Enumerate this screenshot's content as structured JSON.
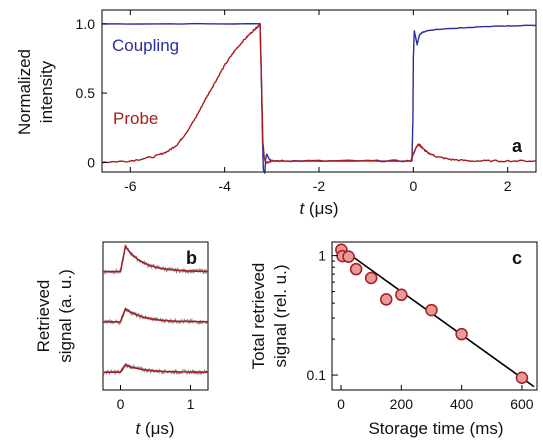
{
  "colors": {
    "coupling": "#2b2f9e",
    "probe": "#a51d22",
    "raw": "#8c8c8c",
    "fit_line": "#000000",
    "marker_fill": "#e89a98",
    "marker_edge": "#a51d22"
  },
  "chart_data": [
    {
      "panel": "a",
      "type": "line",
      "panel_label": "a",
      "xlabel_symbol": "t",
      "xlabel_unit": " (μs)",
      "ylabel_lines": [
        "Normalized",
        "intensity"
      ],
      "xlim": [
        -6.6,
        2.6
      ],
      "ylim": [
        -0.07,
        1.1
      ],
      "xticks": [
        -6,
        -4,
        -2,
        0,
        2
      ],
      "xtick_labels": [
        "-6",
        "-4",
        "-2",
        "0",
        "2"
      ],
      "yticks": [
        0,
        0.5,
        1.0
      ],
      "ytick_labels": [
        "0",
        "0.5",
        "1.0"
      ],
      "series": [
        {
          "name": "Coupling",
          "color_key": "coupling",
          "x": [
            -6.6,
            -3.25,
            -3.22,
            -3.2,
            -3.18,
            -3.15,
            -3.13,
            -3.11,
            -3.05,
            -3.0,
            -2.9,
            -0.03,
            -0.01,
            0.0,
            0.02,
            0.05,
            0.08,
            0.1,
            0.13,
            0.16,
            0.2,
            0.3,
            0.5,
            1.0,
            1.5,
            2.0,
            2.6
          ],
          "y": [
            1.0,
            1.0,
            0.6,
            0.2,
            -0.05,
            -0.08,
            0.02,
            0.06,
            0.02,
            0.01,
            0.01,
            0.01,
            0.3,
            0.75,
            0.95,
            0.9,
            0.85,
            0.88,
            0.92,
            0.93,
            0.94,
            0.95,
            0.96,
            0.97,
            0.98,
            0.985,
            0.99
          ]
        },
        {
          "name": "Probe",
          "color_key": "probe",
          "x": [
            -6.6,
            -6.0,
            -5.5,
            -5.2,
            -5.0,
            -4.8,
            -4.6,
            -4.4,
            -4.2,
            -4.0,
            -3.8,
            -3.6,
            -3.4,
            -3.3,
            -3.25,
            -3.22,
            -3.19,
            -3.16,
            -3.13,
            -3.1,
            -3.0,
            -2.5,
            -1.0,
            -0.05,
            0.0,
            0.05,
            0.1,
            0.15,
            0.2,
            0.3,
            0.5,
            0.8,
            1.2,
            1.8,
            2.6
          ],
          "y": [
            0.0,
            0.01,
            0.04,
            0.08,
            0.13,
            0.22,
            0.33,
            0.46,
            0.58,
            0.7,
            0.8,
            0.88,
            0.95,
            0.98,
            1.0,
            0.6,
            0.15,
            0.03,
            0.0,
            0.0,
            0.01,
            0.01,
            0.01,
            0.01,
            0.06,
            0.1,
            0.13,
            0.12,
            0.1,
            0.07,
            0.04,
            0.02,
            0.01,
            0.01,
            0.01
          ]
        }
      ]
    },
    {
      "panel": "b",
      "type": "line",
      "panel_label": "b",
      "xlabel_symbol": "t",
      "xlabel_unit": " (μs)",
      "ylabel_lines": [
        "Retrieved",
        "signal (a. u.)"
      ],
      "xlim": [
        -0.25,
        1.25
      ],
      "xticks": [
        0,
        1
      ],
      "xtick_labels": [
        "0",
        "1"
      ],
      "traces": [
        {
          "offset": 0.8,
          "amplitude": 0.17,
          "decay": 0.25
        },
        {
          "offset": 0.46,
          "amplitude": 0.09,
          "decay": 0.25
        },
        {
          "offset": 0.12,
          "amplitude": 0.05,
          "decay": 0.25
        }
      ]
    },
    {
      "panel": "c",
      "type": "scatter",
      "panel_label": "c",
      "xlabel": "Storage time (ms)",
      "ylabel_lines": [
        "Total retrieved",
        "signal (rel. u.)"
      ],
      "xlim": [
        -30,
        650
      ],
      "ylim": [
        0.075,
        1.3
      ],
      "yscale": "log",
      "xticks": [
        0,
        200,
        400,
        600
      ],
      "xtick_labels": [
        "0",
        "200",
        "400",
        "600"
      ],
      "yticks": [
        0.1,
        1
      ],
      "ytick_labels": [
        "0.1",
        "1"
      ],
      "points": {
        "x": [
          1,
          5,
          25,
          50,
          100,
          150,
          200,
          300,
          400,
          600
        ],
        "y": [
          1.12,
          0.99,
          0.98,
          0.77,
          0.65,
          0.43,
          0.47,
          0.35,
          0.22,
          0.095
        ]
      },
      "fit": {
        "x": [
          -10,
          640
        ],
        "y": [
          1.2,
          0.08
        ]
      }
    }
  ]
}
